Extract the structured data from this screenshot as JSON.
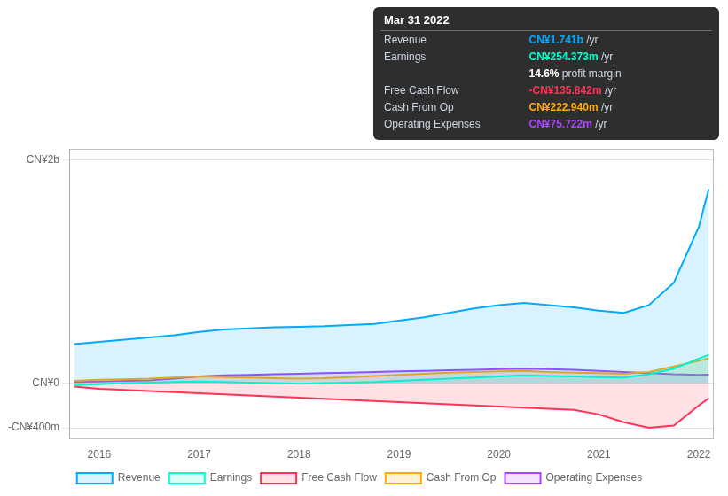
{
  "chart_data": {
    "type": "area",
    "x": [
      2015.75,
      2016.0,
      2016.25,
      2016.5,
      2016.75,
      2017.0,
      2017.25,
      2017.5,
      2017.75,
      2018.0,
      2018.25,
      2018.5,
      2018.75,
      2019.0,
      2019.25,
      2019.5,
      2019.75,
      2020.0,
      2020.25,
      2020.5,
      2020.75,
      2021.0,
      2021.25,
      2021.5,
      2021.75,
      2022.0,
      2022.1
    ],
    "xlim": [
      2015.7,
      2022.15
    ],
    "xticks": [
      2016,
      2017,
      2018,
      2019,
      2020,
      2021,
      2022
    ],
    "ylim": [
      -500000000,
      2100000000
    ],
    "yticks": [
      {
        "value": -400000000,
        "label": "-CN¥400m"
      },
      {
        "value": 0,
        "label": "CN¥0"
      },
      {
        "value": 2000000000,
        "label": "CN¥2b"
      }
    ],
    "grid": "y",
    "legend": "bottom",
    "series": [
      {
        "name": "Revenue",
        "color": "#00aaff",
        "values": [
          350000000,
          370000000,
          390000000,
          410000000,
          430000000,
          460000000,
          480000000,
          490000000,
          500000000,
          505000000,
          510000000,
          520000000,
          530000000,
          560000000,
          590000000,
          630000000,
          670000000,
          700000000,
          720000000,
          700000000,
          680000000,
          650000000,
          630000000,
          700000000,
          900000000,
          1400000000,
          1741000000
        ]
      },
      {
        "name": "Earnings",
        "color": "#00ffcc",
        "values": [
          -20000000,
          -10000000,
          0,
          5000000,
          10000000,
          15000000,
          10000000,
          5000000,
          0,
          -5000000,
          0,
          5000000,
          10000000,
          20000000,
          30000000,
          40000000,
          50000000,
          60000000,
          70000000,
          65000000,
          60000000,
          55000000,
          50000000,
          80000000,
          130000000,
          220000000,
          254000000
        ]
      },
      {
        "name": "Free Cash Flow",
        "color": "#ff3355",
        "values": [
          -30000000,
          -50000000,
          -60000000,
          -70000000,
          -80000000,
          -90000000,
          -100000000,
          -110000000,
          -120000000,
          -130000000,
          -140000000,
          -150000000,
          -160000000,
          -170000000,
          -180000000,
          -190000000,
          -200000000,
          -210000000,
          -220000000,
          -230000000,
          -240000000,
          -280000000,
          -350000000,
          -400000000,
          -380000000,
          -200000000,
          -135842000
        ]
      },
      {
        "name": "Cash From Op",
        "color": "#ffaa00",
        "values": [
          20000000,
          30000000,
          35000000,
          40000000,
          50000000,
          60000000,
          55000000,
          50000000,
          45000000,
          40000000,
          45000000,
          55000000,
          65000000,
          75000000,
          85000000,
          95000000,
          100000000,
          105000000,
          110000000,
          100000000,
          95000000,
          90000000,
          85000000,
          100000000,
          150000000,
          200000000,
          222940000
        ]
      },
      {
        "name": "Operating Expenses",
        "color": "#aa44ff",
        "values": [
          10000000,
          15000000,
          20000000,
          25000000,
          40000000,
          60000000,
          70000000,
          75000000,
          80000000,
          85000000,
          90000000,
          95000000,
          100000000,
          105000000,
          110000000,
          115000000,
          120000000,
          125000000,
          130000000,
          125000000,
          120000000,
          110000000,
          100000000,
          90000000,
          80000000,
          75000000,
          75722000
        ]
      }
    ],
    "annotations": [
      {
        "title": "Mar 31 2022",
        "rows": [
          {
            "label": "Revenue",
            "value": "CN¥1.741b",
            "suffix": " /yr",
            "color": "#00aaff"
          },
          {
            "label": "Earnings",
            "value": "CN¥254.373m",
            "suffix": " /yr",
            "color": "#00ffcc"
          },
          {
            "value": "14.6%",
            "suffix": " profit margin"
          },
          {
            "label": "Free Cash Flow",
            "value": "-CN¥135.842m",
            "suffix": " /yr",
            "color": "#ff3355"
          },
          {
            "label": "Cash From Op",
            "value": "CN¥222.940m",
            "suffix": " /yr",
            "color": "#ffaa00"
          },
          {
            "label": "Operating Expenses",
            "value": "CN¥75.722m",
            "suffix": " /yr",
            "color": "#aa44ff"
          }
        ]
      }
    ]
  }
}
